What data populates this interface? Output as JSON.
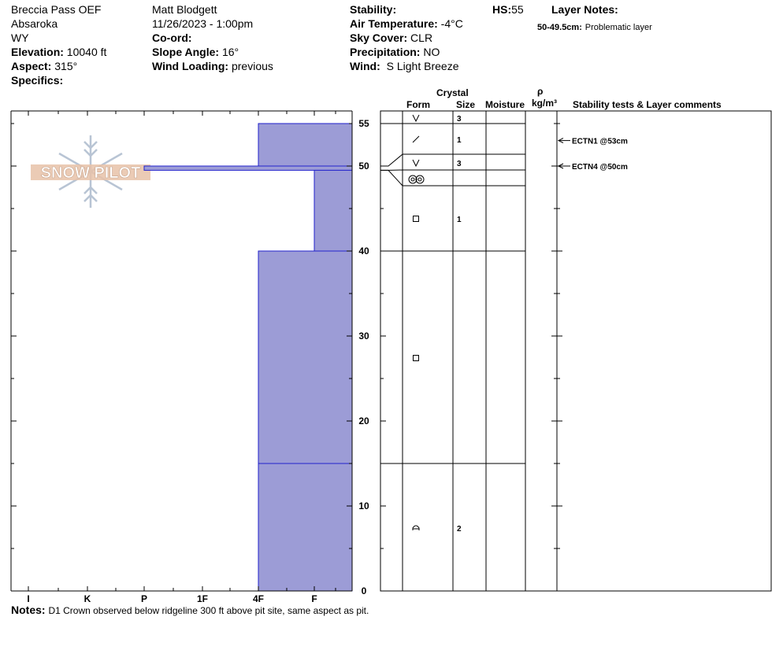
{
  "header": {
    "location": "Breccia Pass OEF",
    "range": "Absaroka",
    "state": "WY",
    "elevation_label": "Elevation:",
    "elevation_value": "10040 ft",
    "aspect_label": "Aspect:",
    "aspect_value": "315°",
    "specifics_label": "Specifics:",
    "observer": "Matt Blodgett",
    "datetime": "11/26/2023 - 1:00pm",
    "coord_label": "Co-ord:",
    "slope_label": "Slope Angle:",
    "slope_value": "16°",
    "wind_loading_label": "Wind Loading:",
    "wind_loading_value": "previous",
    "stability_label": "Stability:",
    "air_temp_label": "Air Temperature:",
    "air_temp_value": "-4°C",
    "sky_label": "Sky Cover:",
    "sky_value": "CLR",
    "precip_label": "Precipitation:",
    "precip_value": "NO",
    "wind_label": "Wind:",
    "wind_value": "S Light Breeze",
    "hs_label": "HS:",
    "hs_value": "55",
    "layer_notes_label": "Layer Notes:",
    "layer_note_range": "50-49.5cm:",
    "layer_note_text": "Problematic layer"
  },
  "logo_text": "SNOW PILOT",
  "columns": {
    "crystal": "Crystal",
    "form": "Form",
    "size": "Size",
    "moisture": "Moisture",
    "rho": "ρ",
    "density_unit": "kg/m³",
    "stability": "Stability tests & Layer comments"
  },
  "notes_label": "Notes:",
  "notes_text": "D1 Crown observed below ridgeline 300 ft above pit site, same aspect as pit.",
  "colors": {
    "hardness_fill": "#9c9cd6",
    "hardness_stroke": "#2222cc",
    "axis": "#000000"
  },
  "chart_data": {
    "type": "snow_profile",
    "y_label": "",
    "y_range": [
      0,
      56.5
    ],
    "y_ticks": [
      0,
      10,
      20,
      30,
      40,
      50,
      55
    ],
    "hardness_scale": [
      "I",
      "K",
      "P",
      "1F",
      "4F",
      "F"
    ],
    "hardness_layers": [
      {
        "top": 55,
        "bottom": 50,
        "hardness": "4F"
      },
      {
        "top": 50,
        "bottom": 49.5,
        "hardness": "P"
      },
      {
        "top": 49.5,
        "bottom": 40,
        "hardness": "F"
      },
      {
        "top": 40,
        "bottom": 15,
        "hardness": "4F"
      },
      {
        "top": 15,
        "bottom": 0,
        "hardness": "4F"
      }
    ],
    "layers": [
      {
        "top": 55,
        "bottom": 51,
        "form": "depth-hoar",
        "size": "3"
      },
      {
        "top": 51,
        "bottom": 49.5,
        "form": "decomposing-fragments",
        "size": "1"
      },
      {
        "top": 49.5,
        "bottom": 49.5,
        "form": "depth-hoar",
        "size": "3"
      },
      {
        "top": 49.5,
        "bottom": 49.5,
        "form": "melt-forms",
        "size": ""
      },
      {
        "top": 49.5,
        "bottom": 40,
        "form": "faceted",
        "size": "1"
      },
      {
        "top": 40,
        "bottom": 15,
        "form": "faceted",
        "size": ""
      },
      {
        "top": 15,
        "bottom": 0,
        "form": "faceted-rounding",
        "size": "2"
      }
    ],
    "stability_tests": [
      {
        "depth": 53,
        "label": "ECTN1 @53cm"
      },
      {
        "depth": 50,
        "label": "ECTN4 @50cm"
      }
    ]
  }
}
